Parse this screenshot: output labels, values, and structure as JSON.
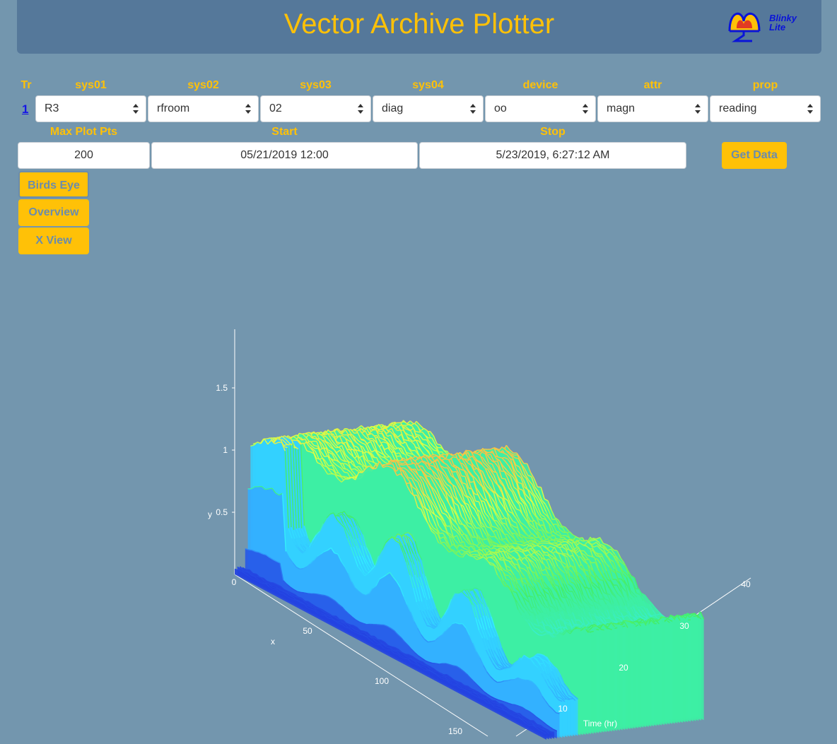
{
  "app": {
    "title": "Vector Archive Plotter",
    "logo_line1": "Blinky",
    "logo_line2": "Lite"
  },
  "labels": {
    "tr": "Tr",
    "sys01": "sys01",
    "sys02": "sys02",
    "sys03": "sys03",
    "sys04": "sys04",
    "device": "device",
    "attr": "attr",
    "prop": "prop",
    "max_plot_pts": "Max Plot Pts",
    "start": "Start",
    "stop": "Stop"
  },
  "trace": {
    "number": "1",
    "sys01": "R3",
    "sys02": "rfroom",
    "sys03": "02",
    "sys04": "diag",
    "device": "oo",
    "attr": "magn",
    "prop": "reading"
  },
  "inputs": {
    "max_plot_pts": "200",
    "start": "05/21/2019 12:00",
    "stop": "5/23/2019, 6:27:12 AM"
  },
  "buttons": {
    "get_data": "Get Data",
    "birds_eye": "Birds Eye",
    "overview": "Overview",
    "x_view": "X View"
  },
  "chart_data": {
    "type": "surface",
    "y_axis": {
      "label": "y",
      "ticks": [
        "0.5",
        "1",
        "1.5"
      ]
    },
    "x_axis": {
      "label": "x",
      "ticks": [
        "0",
        "50",
        "100",
        "150"
      ]
    },
    "time_axis": {
      "label": "Time (hr)",
      "ticks": [
        "10",
        "20",
        "30",
        "40"
      ]
    },
    "z_range": [
      0,
      1.9
    ],
    "colormap": [
      "#2233dd",
      "#33aaff",
      "#33eeff",
      "#44ee66",
      "#ddff44",
      "#ffbb44",
      "#ff4433"
    ]
  }
}
